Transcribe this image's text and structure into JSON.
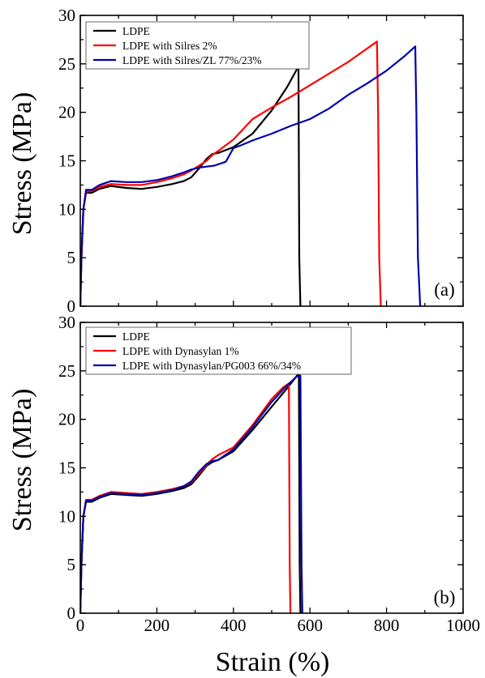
{
  "figure": {
    "xlabel": "Strain (%)",
    "ylabel": "Stress (MPa)"
  },
  "chart_data": [
    {
      "type": "line",
      "panel_label": "(a)",
      "xlabel": "",
      "ylabel": "Stress (MPa)",
      "xlim": [
        0,
        1000
      ],
      "ylim": [
        0,
        30
      ],
      "x_ticks": [],
      "y_ticks": [
        "0",
        "5",
        "10",
        "15",
        "20",
        "25",
        "30"
      ],
      "grid": false,
      "legend": "top-left",
      "series": [
        {
          "name": "LDPE",
          "color": "#000000",
          "x": [
            0,
            3,
            8,
            15,
            30,
            50,
            80,
            120,
            160,
            200,
            240,
            270,
            290,
            310,
            330,
            345,
            360,
            400,
            450,
            500,
            540,
            568,
            570,
            572,
            575
          ],
          "y": [
            0,
            5,
            10,
            11.7,
            11.7,
            12.1,
            12.4,
            12.2,
            12.1,
            12.3,
            12.6,
            12.9,
            13.3,
            14.2,
            15.2,
            15.7,
            15.8,
            16.4,
            17.8,
            20.2,
            22.6,
            24.6,
            24.7,
            5,
            0
          ]
        },
        {
          "name": "LDPE with Silres 2%",
          "color": "#ff0000",
          "x": [
            0,
            3,
            8,
            15,
            30,
            50,
            80,
            120,
            160,
            200,
            240,
            270,
            290,
            310,
            330,
            345,
            360,
            400,
            450,
            500,
            550,
            600,
            650,
            700,
            750,
            775,
            778,
            781,
            785
          ],
          "y": [
            0,
            5,
            10,
            11.8,
            11.9,
            12.3,
            12.6,
            12.5,
            12.5,
            12.8,
            13.2,
            13.6,
            14.0,
            14.5,
            15.0,
            15.6,
            16.0,
            17.2,
            19.3,
            20.5,
            21.6,
            22.8,
            24.0,
            25.2,
            26.6,
            27.3,
            20,
            5,
            0
          ]
        },
        {
          "name": "LDPE with Silres/ZL 77%/23%",
          "color": "#0000aa",
          "x": [
            0,
            3,
            8,
            15,
            30,
            50,
            80,
            120,
            160,
            200,
            240,
            270,
            290,
            310,
            330,
            350,
            380,
            400,
            420,
            450,
            500,
            550,
            600,
            650,
            700,
            750,
            800,
            850,
            875,
            878,
            882,
            888
          ],
          "y": [
            0,
            5,
            10,
            12.0,
            12.0,
            12.5,
            12.9,
            12.8,
            12.8,
            13.0,
            13.4,
            13.8,
            14.1,
            14.3,
            14.4,
            14.5,
            14.9,
            16.3,
            16.6,
            17.1,
            17.8,
            18.6,
            19.3,
            20.4,
            21.8,
            23.0,
            24.3,
            25.9,
            26.8,
            20,
            5,
            0
          ]
        }
      ]
    },
    {
      "type": "line",
      "panel_label": "(b)",
      "xlabel": "Strain (%)",
      "ylabel": "Stress (MPa)",
      "xlim": [
        0,
        1000
      ],
      "ylim": [
        0,
        30
      ],
      "x_ticks": [
        "0",
        "200",
        "400",
        "600",
        "800",
        "1000"
      ],
      "y_ticks": [
        "0",
        "5",
        "10",
        "15",
        "20",
        "25",
        "30"
      ],
      "grid": false,
      "legend": "top-left",
      "series": [
        {
          "name": "LDPE",
          "color": "#000000",
          "x": [
            0,
            3,
            8,
            15,
            30,
            50,
            80,
            120,
            160,
            200,
            240,
            270,
            290,
            310,
            330,
            345,
            360,
            400,
            450,
            500,
            540,
            568,
            571,
            573,
            575
          ],
          "y": [
            0,
            5,
            10,
            11.5,
            11.5,
            11.9,
            12.3,
            12.2,
            12.1,
            12.3,
            12.6,
            12.9,
            13.3,
            14.2,
            15.2,
            15.6,
            15.8,
            16.7,
            18.9,
            21.3,
            23.2,
            24.6,
            24.7,
            5,
            0
          ]
        },
        {
          "name": "LDPE with Dynasylan 1%",
          "color": "#ff0000",
          "x": [
            0,
            3,
            8,
            15,
            30,
            50,
            80,
            120,
            160,
            200,
            240,
            270,
            290,
            310,
            330,
            345,
            360,
            400,
            450,
            500,
            530,
            545,
            547,
            549
          ],
          "y": [
            0,
            5,
            10,
            11.7,
            11.7,
            12.1,
            12.5,
            12.4,
            12.3,
            12.5,
            12.8,
            13.1,
            13.5,
            14.4,
            15.3,
            15.9,
            16.3,
            17.1,
            19.4,
            22.1,
            23.3,
            23.7,
            5,
            0
          ]
        },
        {
          "name": "LDPE with Dynasylan/PG003 66%/34%",
          "color": "#0000aa",
          "x": [
            0,
            3,
            8,
            15,
            30,
            50,
            80,
            120,
            160,
            200,
            240,
            270,
            290,
            310,
            330,
            345,
            360,
            400,
            450,
            500,
            540,
            565,
            575,
            578,
            580
          ],
          "y": [
            0,
            5,
            10,
            11.6,
            11.6,
            12.0,
            12.4,
            12.3,
            12.2,
            12.4,
            12.7,
            13.1,
            13.6,
            14.6,
            15.4,
            15.7,
            15.8,
            16.9,
            19.2,
            21.8,
            23.5,
            24.4,
            24.5,
            5,
            0
          ]
        }
      ]
    }
  ]
}
